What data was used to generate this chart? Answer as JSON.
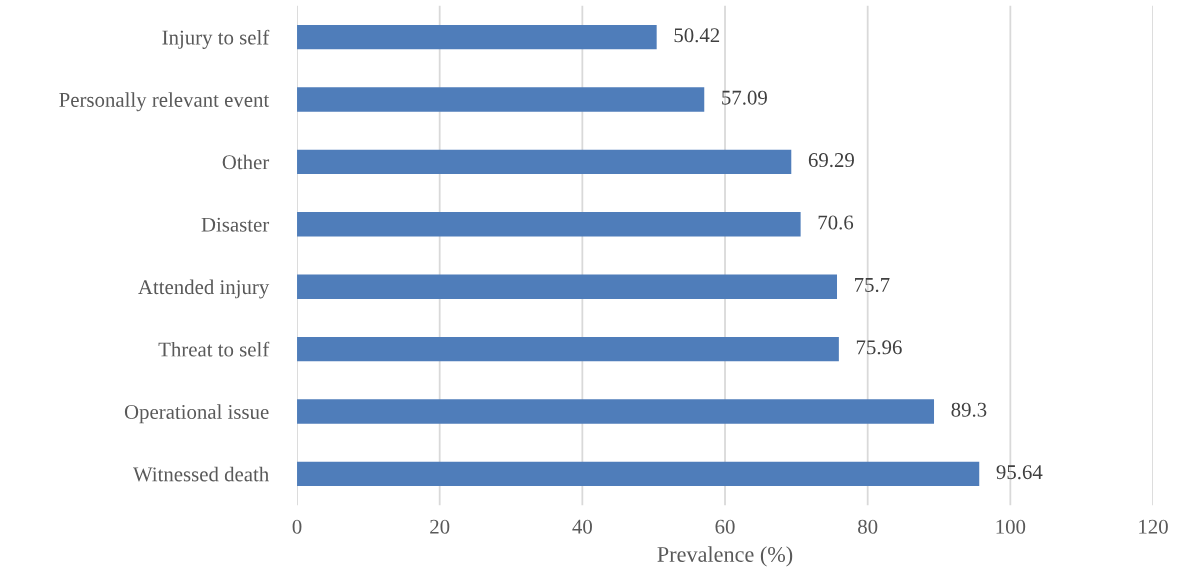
{
  "chart_data": {
    "type": "bar",
    "orientation": "horizontal",
    "xlabel": "Prevalence (%)",
    "categories": [
      "Injury to self",
      "Personally relevant event",
      "Other",
      "Disaster",
      "Attended injury",
      "Threat to self",
      "Operational issue",
      "Witnessed death"
    ],
    "values": [
      50.42,
      57.09,
      69.29,
      70.6,
      75.7,
      75.96,
      89.3,
      95.64
    ],
    "color": "#4f7dba",
    "xlim": [
      0,
      120
    ],
    "xticks": [
      0,
      20,
      40,
      60,
      80,
      100,
      120
    ],
    "grid": "x",
    "data_labels": true
  }
}
